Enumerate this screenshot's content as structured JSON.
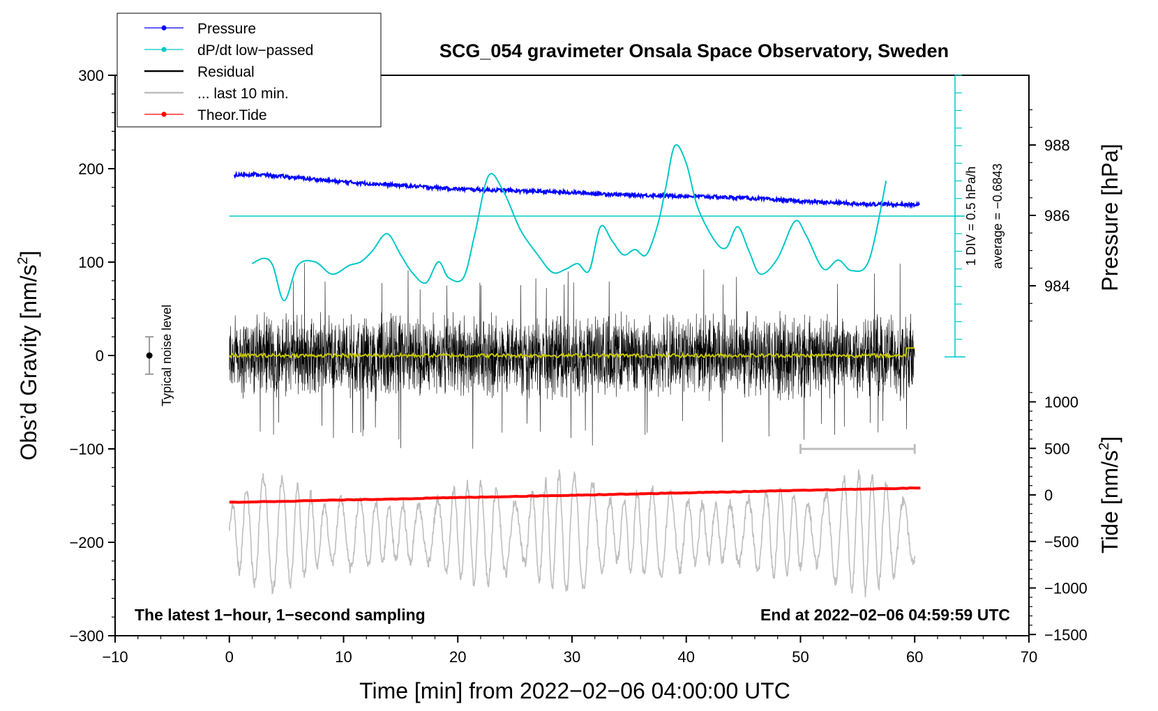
{
  "chart_data": {
    "type": "line",
    "title": "SCG_054 gravimeter Onsala Space Observatory, Sweden",
    "xlabel": "Time [min] from 2022−02−06 04:00:00 UTC",
    "ylabel_left": "Obs’d Gravity [nm/s",
    "ylabel_left_sup": "2",
    "ylabel_left_end": "]",
    "ylabel_right_pressure": "Pressure [hPa]",
    "ylabel_right_tide": "Tide [nm/s",
    "ylabel_right_tide_sup": "2",
    "ylabel_right_tide_end": "]",
    "xlim": [
      -10,
      70
    ],
    "ylim": [
      -300,
      300
    ],
    "x_ticks": [
      {
        "v": -10,
        "label": "−10"
      },
      {
        "v": 0,
        "label": "0"
      },
      {
        "v": 10,
        "label": "10"
      },
      {
        "v": 20,
        "label": "20"
      },
      {
        "v": 30,
        "label": "30"
      },
      {
        "v": 40,
        "label": "40"
      },
      {
        "v": 50,
        "label": "50"
      },
      {
        "v": 60,
        "label": "60"
      },
      {
        "v": 70,
        "label": "70"
      }
    ],
    "y_ticks": [
      {
        "v": 300,
        "label": "300"
      },
      {
        "v": 200,
        "label": "200"
      },
      {
        "v": 100,
        "label": "100"
      },
      {
        "v": 0,
        "label": "0"
      },
      {
        "v": -100,
        "label": "−100"
      },
      {
        "v": -200,
        "label": "−200"
      },
      {
        "v": -300,
        "label": "−300"
      }
    ],
    "pressure_ticks": [
      {
        "v": 988,
        "label": "988"
      },
      {
        "v": 986,
        "label": "986"
      },
      {
        "v": 984,
        "label": "984"
      }
    ],
    "tide_ticks": [
      {
        "v": 1000,
        "label": "1000"
      },
      {
        "v": 500,
        "label": "500"
      },
      {
        "v": 0,
        "label": "0"
      },
      {
        "v": -500,
        "label": "−500"
      },
      {
        "v": -1000,
        "label": "−1000"
      },
      {
        "v": -1500,
        "label": "−1500"
      }
    ],
    "legend": [
      {
        "label": "Pressure",
        "color": "#0000ff",
        "marker": true
      },
      {
        "label": "dP/dt low−passed",
        "color": "#00c8c8",
        "marker": true
      },
      {
        "label": "Residual",
        "color": "#000000",
        "marker": false
      },
      {
        "label": "... last 10 min.",
        "color": "#bebebe",
        "marker": false
      },
      {
        "label": "Theor.Tide",
        "color": "#ff0000",
        "marker": true
      }
    ],
    "series": [
      {
        "name": "Pressure",
        "color": "#0000ff",
        "axis": "pressure",
        "x": [
          0,
          2,
          5,
          10,
          15,
          20,
          25,
          30,
          35,
          40,
          45,
          50,
          55,
          60
        ],
        "y": [
          987.13,
          987.17,
          987.1,
          986.95,
          986.85,
          986.75,
          986.7,
          986.65,
          986.58,
          986.55,
          986.5,
          986.4,
          986.33,
          986.3
        ]
      },
      {
        "name": "dP/dt low−passed",
        "color": "#00c8c8",
        "axis": "dpdt_div",
        "x": [
          2,
          3,
          3.8,
          4.8,
          6,
          7.5,
          9,
          10.5,
          11.5,
          12.5,
          13.8,
          15,
          16,
          17.2,
          18.3,
          19.2,
          20.5,
          21.5,
          22.7,
          24,
          25.5,
          27,
          28.3,
          29.5,
          30.5,
          31.5,
          32.5,
          33.5,
          34.5,
          35.5,
          36.5,
          37.5,
          38.2,
          39,
          40,
          41,
          42.5,
          43.5,
          44.5,
          45.5,
          46.5,
          48,
          49.5,
          50.5,
          52,
          53.3,
          54.5,
          56,
          57.5
        ],
        "y": [
          5.3,
          5.6,
          5.2,
          3.2,
          5.2,
          5.4,
          4.7,
          5.2,
          5.4,
          6.0,
          7.0,
          5.8,
          4.8,
          4.2,
          5.4,
          4.5,
          4.5,
          7.0,
          10.3,
          9.4,
          7.2,
          5.8,
          4.8,
          5.0,
          5.3,
          4.9,
          7.4,
          6.6,
          5.8,
          6.1,
          5.8,
          7.5,
          9.6,
          12.0,
          11.0,
          8.5,
          6.6,
          6.2,
          7.4,
          6.0,
          4.7,
          5.6,
          7.7,
          6.9,
          5.0,
          5.5,
          4.9,
          5.5,
          10.0
        ]
      },
      {
        "name": "Residual",
        "color": "#000000",
        "axis": "gravity",
        "summary": {
          "x_range": [
            0,
            60
          ],
          "amplitude_nm_s2": 50,
          "peak_nm_s2": 103,
          "trough_nm_s2": -98
        }
      },
      {
        "name": "... last 10 min.",
        "color": "#bebebe",
        "axis": "gravity",
        "summary": {
          "x_range": [
            0,
            60
          ],
          "center_nm_s2": -190,
          "amplitude_nm_s2": 40,
          "max_nm_s2": -100,
          "min_nm_s2": -275
        }
      },
      {
        "name": "Residual smoothed",
        "color": "#c8c800",
        "axis": "gravity",
        "summary": {
          "x_range": [
            0,
            60
          ],
          "level_nm_s2": 0
        }
      },
      {
        "name": "Theor.Tide",
        "color": "#ff0000",
        "axis": "tide",
        "x": [
          0,
          60.5
        ],
        "y": [
          -80,
          75
        ]
      }
    ],
    "dpdt_reference": {
      "value_divs": 8,
      "label": "average = −0.6843"
    },
    "dpdt_scale": {
      "divs": 16,
      "label": "1 DIV = 0.5 hPa/h"
    },
    "noise_bar": {
      "x": -7,
      "center": 0,
      "half_range": 20,
      "label": "Typical noise level"
    },
    "last10_bar": {
      "x_start": 50,
      "x_end": 60,
      "y": -100
    },
    "annotation_left": "The latest 1−hour, 1−second sampling",
    "annotation_right": "End at 2022−02−06 04:59:59 UTC"
  }
}
